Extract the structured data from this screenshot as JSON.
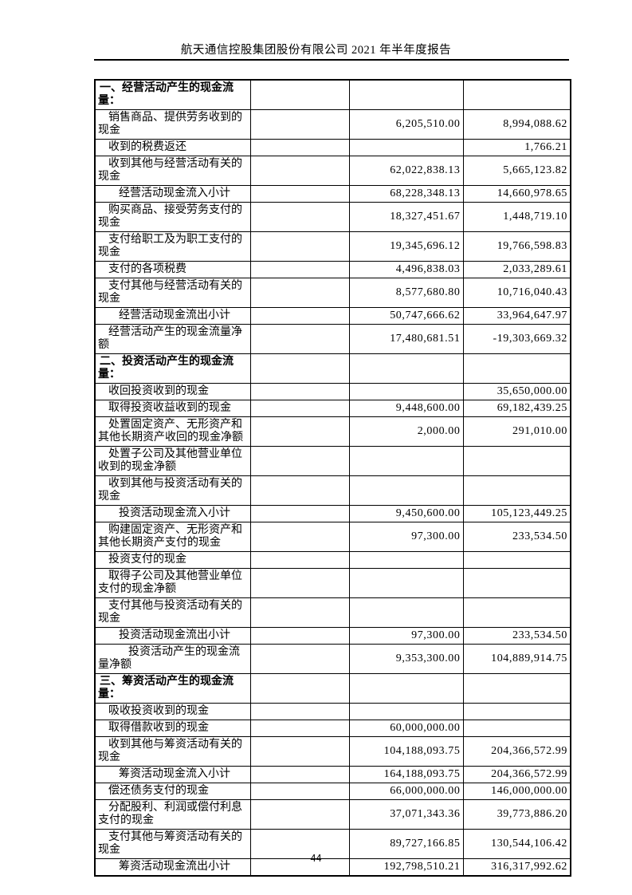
{
  "header": {
    "title": "航天通信控股集团股份有限公司 2021 年半年度报告"
  },
  "footer": {
    "page_number": "44"
  },
  "table": {
    "rows": [
      {
        "label": "一、经营活动产生的现金流量：",
        "current": "",
        "previous": "",
        "type": "section"
      },
      {
        "label": "销售商品、提供劳务收到的现金",
        "current": "6,205,510.00",
        "previous": "8,994,088.62",
        "type": "item"
      },
      {
        "label": "收到的税费返还",
        "current": "",
        "previous": "1,766.21",
        "type": "item"
      },
      {
        "label": "收到其他与经营活动有关的现金",
        "current": "62,022,838.13",
        "previous": "5,665,123.82",
        "type": "item"
      },
      {
        "label": "经营活动现金流入小计",
        "current": "68,228,348.13",
        "previous": "14,660,978.65",
        "type": "subtotal"
      },
      {
        "label": "购买商品、接受劳务支付的现金",
        "current": "18,327,451.67",
        "previous": "1,448,719.10",
        "type": "item"
      },
      {
        "label": "支付给职工及为职工支付的现金",
        "current": "19,345,696.12",
        "previous": "19,766,598.83",
        "type": "item"
      },
      {
        "label": "支付的各项税费",
        "current": "4,496,838.03",
        "previous": "2,033,289.61",
        "type": "item"
      },
      {
        "label": "支付其他与经营活动有关的现金",
        "current": "8,577,680.80",
        "previous": "10,716,040.43",
        "type": "item"
      },
      {
        "label": "经营活动现金流出小计",
        "current": "50,747,666.62",
        "previous": "33,964,647.97",
        "type": "subtotal"
      },
      {
        "label": "经营活动产生的现金流量净额",
        "current": "17,480,681.51",
        "previous": "-19,303,669.32",
        "type": "item"
      },
      {
        "label": "二、投资活动产生的现金流量：",
        "current": "",
        "previous": "",
        "type": "section"
      },
      {
        "label": "收回投资收到的现金",
        "current": "",
        "previous": "35,650,000.00",
        "type": "item"
      },
      {
        "label": "取得投资收益收到的现金",
        "current": "9,448,600.00",
        "previous": "69,182,439.25",
        "type": "item"
      },
      {
        "label": "处置固定资产、无形资产和其他长期资产收回的现金净额",
        "current": "2,000.00",
        "previous": "291,010.00",
        "type": "item"
      },
      {
        "label": "处置子公司及其他营业单位收到的现金净额",
        "current": "",
        "previous": "",
        "type": "item"
      },
      {
        "label": "收到其他与投资活动有关的现金",
        "current": "",
        "previous": "",
        "type": "item"
      },
      {
        "label": "投资活动现金流入小计",
        "current": "9,450,600.00",
        "previous": "105,123,449.25",
        "type": "subtotal"
      },
      {
        "label": "购建固定资产、无形资产和其他长期资产支付的现金",
        "current": "97,300.00",
        "previous": "233,534.50",
        "type": "item"
      },
      {
        "label": "投资支付的现金",
        "current": "",
        "previous": "",
        "type": "item"
      },
      {
        "label": "取得子公司及其他营业单位支付的现金净额",
        "current": "",
        "previous": "",
        "type": "item"
      },
      {
        "label": "支付其他与投资活动有关的现金",
        "current": "",
        "previous": "",
        "type": "item"
      },
      {
        "label": "投资活动现金流出小计",
        "current": "97,300.00",
        "previous": "233,534.50",
        "type": "subtotal"
      },
      {
        "label": "投资活动产生的现金流量净额",
        "current": "9,353,300.00",
        "previous": "104,889,914.75",
        "type": "deep"
      },
      {
        "label": "三、筹资活动产生的现金流量：",
        "current": "",
        "previous": "",
        "type": "section"
      },
      {
        "label": "吸收投资收到的现金",
        "current": "",
        "previous": "",
        "type": "item"
      },
      {
        "label": "取得借款收到的现金",
        "current": "60,000,000.00",
        "previous": "",
        "type": "item"
      },
      {
        "label": "收到其他与筹资活动有关的现金",
        "current": "104,188,093.75",
        "previous": "204,366,572.99",
        "type": "item"
      },
      {
        "label": "筹资活动现金流入小计",
        "current": "164,188,093.75",
        "previous": "204,366,572.99",
        "type": "subtotal"
      },
      {
        "label": "偿还债务支付的现金",
        "current": "66,000,000.00",
        "previous": "146,000,000.00",
        "type": "item"
      },
      {
        "label": "分配股利、利润或偿付利息支付的现金",
        "current": "37,071,343.36",
        "previous": "39,773,886.20",
        "type": "item"
      },
      {
        "label": "支付其他与筹资活动有关的现金",
        "current": "89,727,166.85",
        "previous": "130,544,106.42",
        "type": "item"
      },
      {
        "label": "筹资活动现金流出小计",
        "current": "192,798,510.21",
        "previous": "316,317,992.62",
        "type": "subtotal"
      }
    ]
  }
}
